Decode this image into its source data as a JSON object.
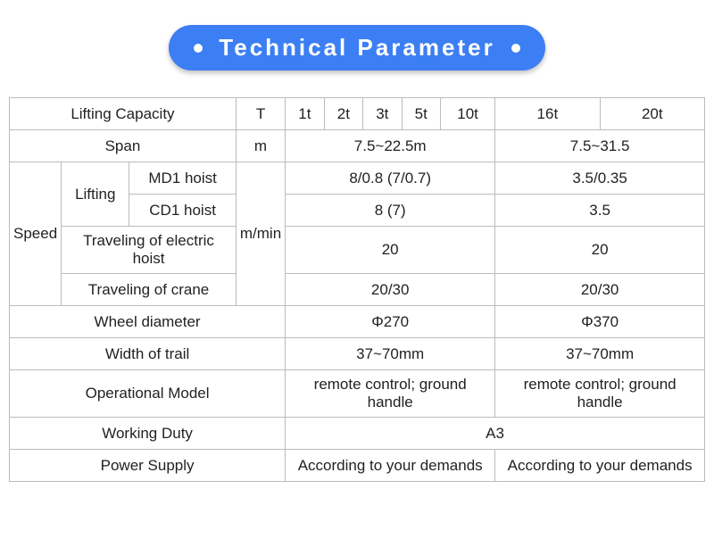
{
  "header": {
    "title": "Technical Parameter"
  },
  "table": {
    "rows": {
      "lifting_capacity_label": "Lifting Capacity",
      "unit_T": "T",
      "cap_1t": "1t",
      "cap_2t": "2t",
      "cap_3t": "3t",
      "cap_5t": "5t",
      "cap_10t": "10t",
      "cap_16t": "16t",
      "cap_20t": "20t",
      "span_label": "Span",
      "unit_m": "m",
      "span_val_a": "7.5~22.5m",
      "span_val_b": "7.5~31.5",
      "speed_label": "Speed",
      "lifting_label": "Lifting",
      "md1_label": "MD1 hoist",
      "cd1_label": "CD1 hoist",
      "travel_hoist_label": "Traveling of electric hoist",
      "travel_crane_label": "Traveling of crane",
      "unit_mmin": "m/min",
      "md1_a": "8/0.8 (7/0.7)",
      "md1_b": "3.5/0.35",
      "cd1_a": "8 (7)",
      "cd1_b": "3.5",
      "travel_hoist_a": "20",
      "travel_hoist_b": "20",
      "travel_crane_a": "20/30",
      "travel_crane_b": "20/30",
      "wheel_label": "Wheel diameter",
      "wheel_a": "Φ270",
      "wheel_b": "Φ370",
      "trail_label": "Width of trail",
      "trail_a": "37~70mm",
      "trail_b": "37~70mm",
      "op_label": "Operational Model",
      "op_a": "remote control; ground handle",
      "op_b": "remote control; ground handle",
      "duty_label": "Working Duty",
      "duty_val": "A3",
      "power_label": "Power Supply",
      "power_a": "According to your demands",
      "power_b": "According to your demands"
    }
  },
  "style": {
    "header_bg": "#3c7ef3",
    "header_color": "#ffffff",
    "border_color": "#bcbcbc",
    "fontsize_header": 26,
    "fontsize_table": 17
  }
}
